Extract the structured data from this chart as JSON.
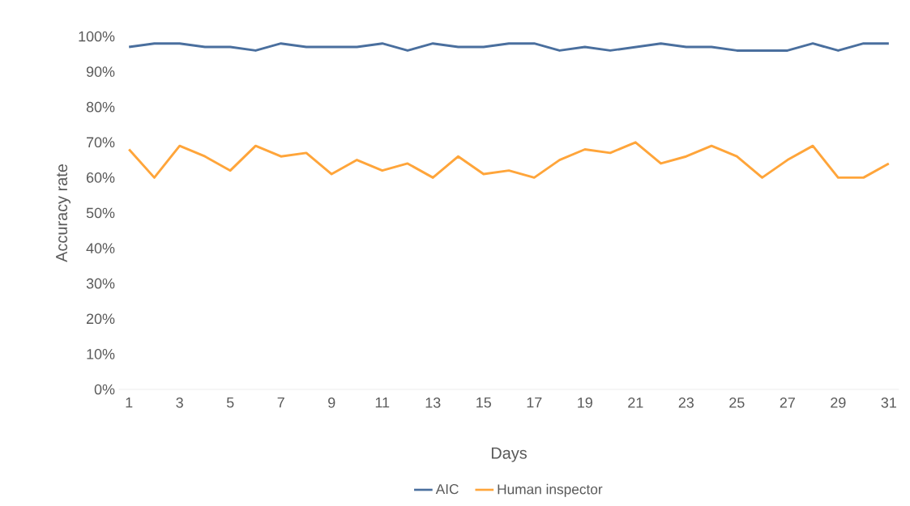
{
  "chart_data": {
    "type": "line",
    "xlabel": "Days",
    "ylabel": "Accuracy rate",
    "categories": [
      "1",
      null,
      "3",
      null,
      "5",
      null,
      "7",
      null,
      "9",
      null,
      "11",
      null,
      "13",
      null,
      "15",
      null,
      "17",
      null,
      "19",
      null,
      "21",
      null,
      "23",
      null,
      "25",
      null,
      "27",
      null,
      "29",
      null,
      "31"
    ],
    "series": [
      {
        "name": "AIC",
        "color": "#4a6f9e",
        "values": [
          97,
          98,
          98,
          97,
          97,
          96,
          98,
          97,
          97,
          97,
          98,
          96,
          98,
          97,
          97,
          98,
          98,
          96,
          97,
          96,
          97,
          98,
          97,
          97,
          96,
          96,
          96,
          98,
          96,
          98,
          98
        ]
      },
      {
        "name": "Human inspector",
        "color": "#ffa53a",
        "values": [
          68,
          60,
          69,
          66,
          62,
          69,
          66,
          67,
          61,
          65,
          62,
          64,
          60,
          66,
          61,
          62,
          60,
          65,
          68,
          67,
          70,
          64,
          66,
          69,
          66,
          60,
          65,
          69,
          60,
          60,
          64
        ]
      }
    ],
    "ylim": [
      0,
      100
    ],
    "yticks": [
      {
        "value": 0,
        "label": "0%"
      },
      {
        "value": 10,
        "label": "10%"
      },
      {
        "value": 20,
        "label": "20%"
      },
      {
        "value": 30,
        "label": "30%"
      },
      {
        "value": 40,
        "label": "40%"
      },
      {
        "value": 50,
        "label": "50%"
      },
      {
        "value": 60,
        "label": "60%"
      },
      {
        "value": 70,
        "label": "70%"
      },
      {
        "value": 80,
        "label": "80%"
      },
      {
        "value": 90,
        "label": "90%"
      },
      {
        "value": 100,
        "label": "100%"
      }
    ],
    "grid": false,
    "legend": "bottom",
    "marker": "none",
    "line_style": "solid"
  }
}
